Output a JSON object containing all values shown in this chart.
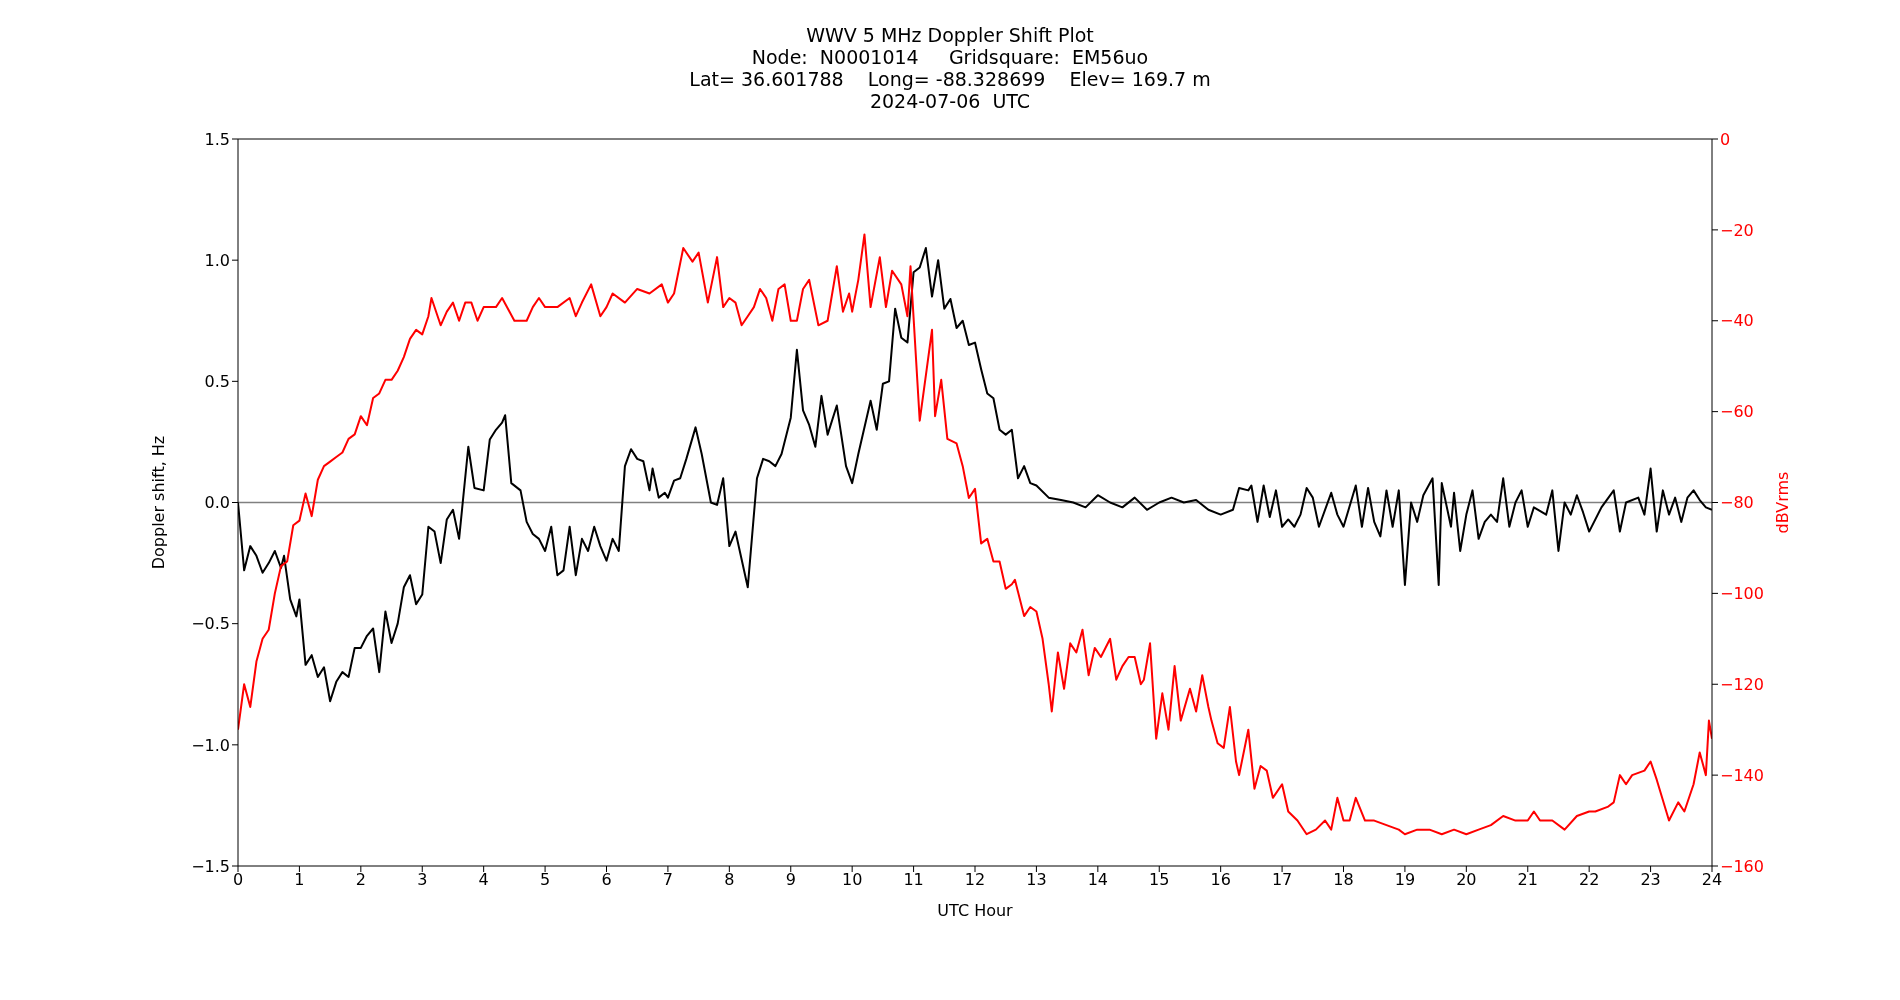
{
  "chart_data": {
    "type": "line",
    "title": "WWV 5 MHz Doppler Shift Plot",
    "subtitle": "Node:  N0001014     Gridsquare:  EM56uo\nLat= 36.601788    Long= -88.328699    Elev= 169.7 m\n2024-07-06  UTC",
    "xlabel": "UTC Hour",
    "ylabel": "Doppler shift, Hz",
    "y2label": "dBVrms",
    "xlim": [
      0,
      24
    ],
    "xticks": [
      0,
      1,
      2,
      3,
      4,
      5,
      6,
      7,
      8,
      9,
      10,
      11,
      12,
      13,
      14,
      15,
      16,
      17,
      18,
      19,
      20,
      21,
      22,
      23,
      24
    ],
    "ylim": [
      -1.5,
      1.5
    ],
    "yticks": [
      -1.5,
      {
        "value": -1,
        "label": "−1.0"
      },
      -0.5,
      {
        "value": 0,
        "label": "0.0"
      },
      0.5,
      {
        "value": 1,
        "label": "1.0"
      },
      1.5
    ],
    "y2lim": [
      -160,
      0
    ],
    "y2ticks": [
      -160,
      -140,
      -120,
      -100,
      -80,
      -60,
      -40,
      -20,
      0
    ],
    "ref_lines": [
      {
        "axis": "y",
        "value": 0,
        "color": "#808080"
      }
    ],
    "legend": false,
    "series": [
      {
        "color": "#000000",
        "x": [
          0,
          0.1,
          0.2,
          0.3,
          0.4,
          0.5,
          0.6,
          0.7,
          0.75,
          0.85,
          0.95,
          1.0,
          1.1,
          1.2,
          1.3,
          1.4,
          1.5,
          1.6,
          1.7,
          1.8,
          1.9,
          2.0,
          2.1,
          2.2,
          2.3,
          2.4,
          2.5,
          2.6,
          2.7,
          2.8,
          2.9,
          3.0,
          3.1,
          3.2,
          3.3,
          3.4,
          3.5,
          3.6,
          3.75,
          3.85,
          4.0,
          4.1,
          4.2,
          4.3,
          4.35,
          4.45,
          4.6,
          4.7,
          4.8,
          4.9,
          5.0,
          5.1,
          5.2,
          5.3,
          5.4,
          5.5,
          5.6,
          5.7,
          5.8,
          5.9,
          6.0,
          6.1,
          6.2,
          6.3,
          6.4,
          6.5,
          6.6,
          6.7,
          6.75,
          6.85,
          6.95,
          7.0,
          7.1,
          7.2,
          7.3,
          7.45,
          7.55,
          7.7,
          7.8,
          7.9,
          8.0,
          8.1,
          8.3,
          8.45,
          8.55,
          8.65,
          8.75,
          8.85,
          9.0,
          9.1,
          9.2,
          9.3,
          9.4,
          9.5,
          9.6,
          9.75,
          9.9,
          10.0,
          10.1,
          10.3,
          10.4,
          10.5,
          10.6,
          10.7,
          10.8,
          10.9,
          11.0,
          11.1,
          11.2,
          11.3,
          11.4,
          11.5,
          11.6,
          11.7,
          11.8,
          11.9,
          12.0,
          12.1,
          12.2,
          12.3,
          12.4,
          12.5,
          12.6,
          12.7,
          12.8,
          12.9,
          13.0,
          13.2,
          13.4,
          13.6,
          13.8,
          14.0,
          14.2,
          14.4,
          14.6,
          14.8,
          15.0,
          15.2,
          15.4,
          15.6,
          15.8,
          16.0,
          16.2,
          16.3,
          16.45,
          16.5,
          16.6,
          16.7,
          16.8,
          16.9,
          17.0,
          17.1,
          17.2,
          17.3,
          17.4,
          17.5,
          17.6,
          17.8,
          17.9,
          18.0,
          18.2,
          18.3,
          18.4,
          18.5,
          18.6,
          18.7,
          18.8,
          18.9,
          19.0,
          19.1,
          19.2,
          19.3,
          19.45,
          19.55,
          19.6,
          19.75,
          19.8,
          19.9,
          20.0,
          20.1,
          20.2,
          20.3,
          20.4,
          20.5,
          20.6,
          20.7,
          20.8,
          20.9,
          21.0,
          21.1,
          21.3,
          21.4,
          21.5,
          21.6,
          21.7,
          21.8,
          21.9,
          22.0,
          22.2,
          22.4,
          22.5,
          22.6,
          22.8,
          22.9,
          23.0,
          23.1,
          23.2,
          23.3,
          23.4,
          23.5,
          23.6,
          23.7,
          23.8,
          23.9,
          24.0
        ],
        "values": [
          0.0,
          -0.28,
          -0.18,
          -0.22,
          -0.29,
          -0.25,
          -0.2,
          -0.27,
          -0.22,
          -0.4,
          -0.47,
          -0.4,
          -0.67,
          -0.63,
          -0.72,
          -0.68,
          -0.82,
          -0.74,
          -0.7,
          -0.72,
          -0.6,
          -0.6,
          -0.55,
          -0.52,
          -0.7,
          -0.45,
          -0.58,
          -0.5,
          -0.35,
          -0.3,
          -0.42,
          -0.38,
          -0.1,
          -0.12,
          -0.25,
          -0.07,
          -0.03,
          -0.15,
          0.23,
          0.06,
          0.05,
          0.26,
          0.3,
          0.33,
          0.36,
          0.08,
          0.05,
          -0.08,
          -0.13,
          -0.15,
          -0.2,
          -0.1,
          -0.3,
          -0.28,
          -0.1,
          -0.3,
          -0.15,
          -0.2,
          -0.1,
          -0.18,
          -0.24,
          -0.15,
          -0.2,
          0.15,
          0.22,
          0.18,
          0.17,
          0.05,
          0.14,
          0.02,
          0.04,
          0.02,
          0.09,
          0.1,
          0.18,
          0.31,
          0.2,
          0.0,
          -0.01,
          0.1,
          -0.18,
          -0.12,
          -0.35,
          0.1,
          0.18,
          0.17,
          0.15,
          0.2,
          0.35,
          0.63,
          0.38,
          0.32,
          0.23,
          0.44,
          0.28,
          0.4,
          0.15,
          0.08,
          0.2,
          0.42,
          0.3,
          0.49,
          0.5,
          0.8,
          0.68,
          0.66,
          0.95,
          0.97,
          1.05,
          0.85,
          1.0,
          0.8,
          0.84,
          0.72,
          0.75,
          0.65,
          0.66,
          0.55,
          0.45,
          0.43,
          0.3,
          0.28,
          0.3,
          0.1,
          0.15,
          0.08,
          0.07,
          0.02,
          0.01,
          0.0,
          -0.02,
          0.03,
          0.0,
          -0.02,
          0.02,
          -0.03,
          0.0,
          0.02,
          0.0,
          0.01,
          -0.03,
          -0.05,
          -0.03,
          0.06,
          0.05,
          0.07,
          -0.08,
          0.07,
          -0.06,
          0.05,
          -0.1,
          -0.07,
          -0.1,
          -0.05,
          0.06,
          0.02,
          -0.1,
          0.04,
          -0.05,
          -0.1,
          0.07,
          -0.1,
          0.06,
          -0.08,
          -0.14,
          0.05,
          -0.1,
          0.05,
          -0.34,
          0.0,
          -0.08,
          0.03,
          0.1,
          -0.34,
          0.08,
          -0.1,
          0.04,
          -0.2,
          -0.05,
          0.05,
          -0.15,
          -0.08,
          -0.05,
          -0.08,
          0.1,
          -0.1,
          0.0,
          0.05,
          -0.1,
          -0.02,
          -0.05,
          0.05,
          -0.2,
          0.0,
          -0.05,
          0.03,
          -0.04,
          -0.12,
          -0.02,
          0.05,
          -0.12,
          0.0,
          0.02,
          -0.05,
          0.14,
          -0.12,
          0.05,
          -0.05,
          0.02,
          -0.08,
          0.02,
          0.05,
          0.01,
          -0.02,
          -0.03
        ]
      },
      {
        "color": "#ff0000",
        "axis": "y2",
        "x": [
          0,
          0.1,
          0.2,
          0.3,
          0.4,
          0.5,
          0.6,
          0.7,
          0.8,
          0.9,
          1.0,
          1.1,
          1.2,
          1.3,
          1.4,
          1.5,
          1.6,
          1.7,
          1.8,
          1.9,
          2.0,
          2.1,
          2.2,
          2.3,
          2.4,
          2.5,
          2.6,
          2.7,
          2.8,
          2.9,
          3.0,
          3.1,
          3.15,
          3.3,
          3.4,
          3.5,
          3.6,
          3.7,
          3.8,
          3.9,
          4.0,
          4.2,
          4.3,
          4.5,
          4.7,
          4.8,
          4.9,
          5.0,
          5.2,
          5.4,
          5.5,
          5.6,
          5.75,
          5.9,
          6.0,
          6.1,
          6.3,
          6.5,
          6.7,
          6.9,
          7.0,
          7.1,
          7.25,
          7.4,
          7.5,
          7.65,
          7.8,
          7.9,
          8.0,
          8.1,
          8.2,
          8.3,
          8.4,
          8.5,
          8.6,
          8.7,
          8.8,
          8.9,
          9.0,
          9.1,
          9.2,
          9.3,
          9.45,
          9.6,
          9.75,
          9.85,
          9.95,
          10.0,
          10.1,
          10.2,
          10.3,
          10.45,
          10.55,
          10.65,
          10.8,
          10.9,
          10.95,
          11.1,
          11.2,
          11.3,
          11.35,
          11.45,
          11.55,
          11.7,
          11.8,
          11.9,
          12.0,
          12.1,
          12.2,
          12.3,
          12.4,
          12.5,
          12.6,
          12.65,
          12.8,
          12.9,
          13.0,
          13.1,
          13.2,
          13.25,
          13.35,
          13.45,
          13.55,
          13.65,
          13.75,
          13.85,
          13.95,
          14.05,
          14.2,
          14.3,
          14.4,
          14.5,
          14.6,
          14.7,
          14.75,
          14.85,
          14.95,
          15.05,
          15.15,
          15.25,
          15.35,
          15.5,
          15.6,
          15.7,
          15.8,
          15.85,
          15.95,
          16.05,
          16.15,
          16.25,
          16.3,
          16.45,
          16.55,
          16.65,
          16.75,
          16.85,
          17.0,
          17.1,
          17.25,
          17.4,
          17.55,
          17.7,
          17.8,
          17.9,
          18.0,
          18.1,
          18.2,
          18.35,
          18.5,
          18.7,
          18.9,
          19.0,
          19.2,
          19.4,
          19.6,
          19.8,
          20.0,
          20.2,
          20.4,
          20.6,
          20.8,
          21.0,
          21.1,
          21.2,
          21.4,
          21.6,
          21.8,
          22.0,
          22.1,
          22.3,
          22.4,
          22.5,
          22.6,
          22.7,
          22.9,
          23.0,
          23.1,
          23.3,
          23.45,
          23.55,
          23.7,
          23.8,
          23.9,
          23.95,
          24.0
        ],
        "values": [
          -130,
          -120,
          -125,
          -115,
          -110,
          -108,
          -100,
          -94,
          -93,
          -85,
          -84,
          -78,
          -83,
          -75,
          -72,
          -71,
          -70,
          -69,
          -66,
          -65,
          -61,
          -63,
          -57,
          -56,
          -53,
          -53,
          -51,
          -48,
          -44,
          -42,
          -43,
          -39,
          -35,
          -41,
          -38,
          -36,
          -40,
          -36,
          -36,
          -40,
          -37,
          -37,
          -35,
          -40,
          -40,
          -37,
          -35,
          -37,
          -37,
          -35,
          -39,
          -36,
          -32,
          -39,
          -37,
          -34,
          -36,
          -33,
          -34,
          -32,
          -36,
          -34,
          -24,
          -27,
          -25,
          -36,
          -26,
          -37,
          -35,
          -36,
          -41,
          -39,
          -37,
          -33,
          -35,
          -40,
          -33,
          -32,
          -40,
          -40,
          -33,
          -31,
          -41,
          -40,
          -28,
          -38,
          -34,
          -38,
          -31,
          -21,
          -37,
          -26,
          -37,
          -29,
          -32,
          -39,
          -28,
          -62,
          -52,
          -42,
          -61,
          -53,
          -66,
          -67,
          -72,
          -79,
          -77,
          -89,
          -88,
          -93,
          -93,
          -99,
          -98,
          -97,
          -105,
          -103,
          -104,
          -110,
          -120,
          -126,
          -113,
          -121,
          -111,
          -113,
          -108,
          -118,
          -112,
          -114,
          -110,
          -119,
          -116,
          -114,
          -114,
          -120,
          -119,
          -111,
          -132,
          -122,
          -130,
          -116,
          -128,
          -121,
          -126,
          -118,
          -125,
          -128,
          -133,
          -134,
          -125,
          -137,
          -140,
          -130,
          -143,
          -138,
          -139,
          -145,
          -142,
          -148,
          -150,
          -153,
          -152,
          -150,
          -152,
          -145,
          -150,
          -150,
          -145,
          -150,
          -150,
          -151,
          -152,
          -153,
          -152,
          -152,
          -153,
          -152,
          -153,
          -152,
          -151,
          -149,
          -150,
          -150,
          -148,
          -150,
          -150,
          -152,
          -149,
          -148,
          -148,
          -147,
          -146,
          -140,
          -142,
          -140,
          -139,
          -137,
          -141,
          -150,
          -146,
          -148,
          -142,
          -135,
          -140,
          -128,
          -132
        ]
      }
    ]
  }
}
